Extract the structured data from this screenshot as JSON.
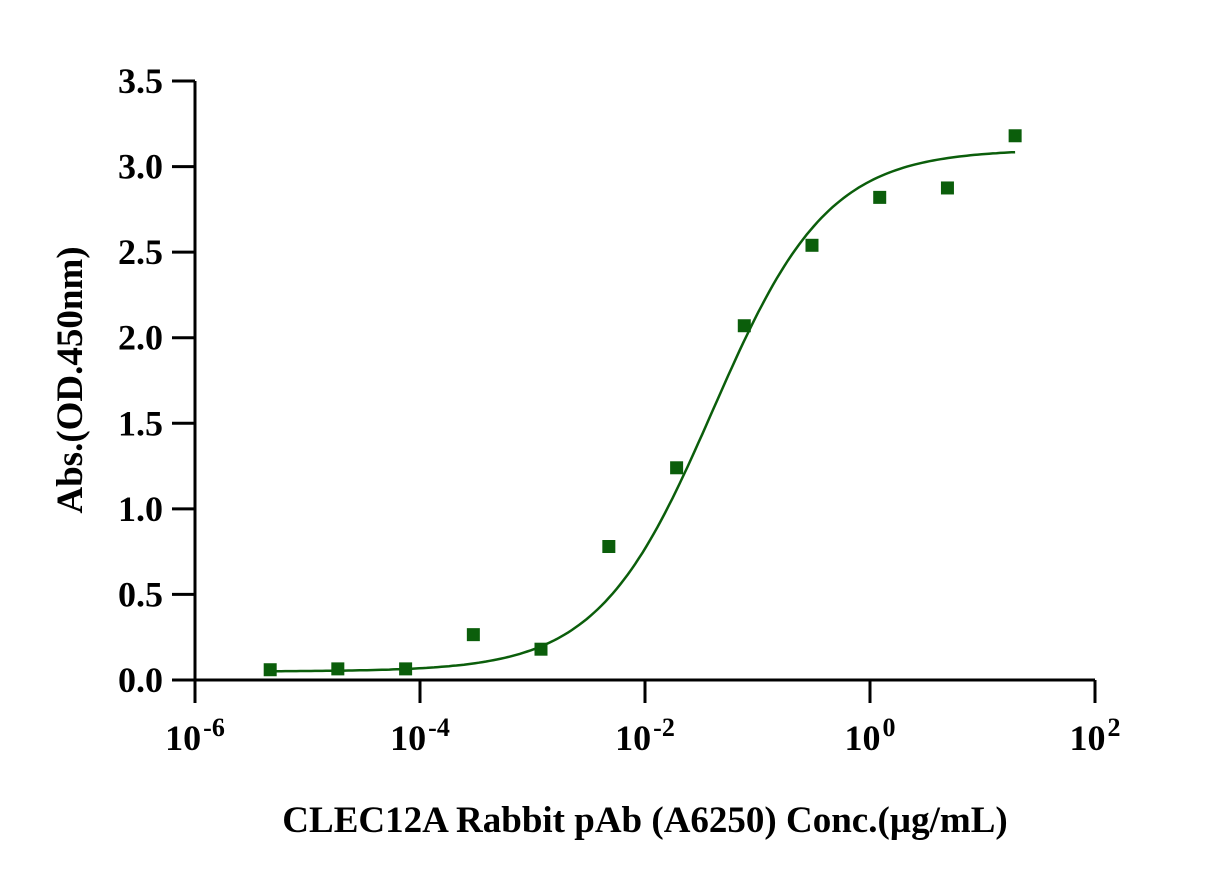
{
  "chart_data": {
    "type": "scatter",
    "title": "",
    "xlabel": "CLEC12A Rabbit pAb (A6250)  Conc.(µg/mL)",
    "ylabel": "Abs.(OD.450nm)",
    "xscale": "log",
    "xlim": [
      1e-06,
      100
    ],
    "ylim": [
      0,
      3.5
    ],
    "grid": false,
    "color": "#0b5e0b",
    "x_ticks": [
      {
        "base": "10",
        "exp": "-6",
        "value": -6
      },
      {
        "base": "10",
        "exp": "-4",
        "value": -4
      },
      {
        "base": "10",
        "exp": "-2",
        "value": -2
      },
      {
        "base": "10",
        "exp": "0",
        "value": 0
      },
      {
        "base": "10",
        "exp": "2",
        "value": 2
      }
    ],
    "y_ticks": [
      "0.0",
      "0.5",
      "1.0",
      "1.5",
      "2.0",
      "2.5",
      "3.0",
      "3.5"
    ],
    "series": [
      {
        "name": "CLEC12A Rabbit pAb (A6250)",
        "x": [
          4.66e-06,
          1.86e-05,
          7.45e-05,
          0.000298,
          0.00119,
          0.00477,
          0.0191,
          0.0763,
          0.305,
          1.22,
          4.88,
          19.5
        ],
        "y": [
          0.06,
          0.065,
          0.065,
          0.265,
          0.18,
          0.78,
          1.24,
          2.07,
          2.54,
          2.82,
          2.875,
          3.18
        ]
      }
    ],
    "fit": {
      "model": "4PL",
      "bottom": 0.05,
      "top": 3.1,
      "ec50": 0.04,
      "hill": 0.85,
      "x_range": [
        4.66e-06,
        19.5
      ]
    }
  }
}
